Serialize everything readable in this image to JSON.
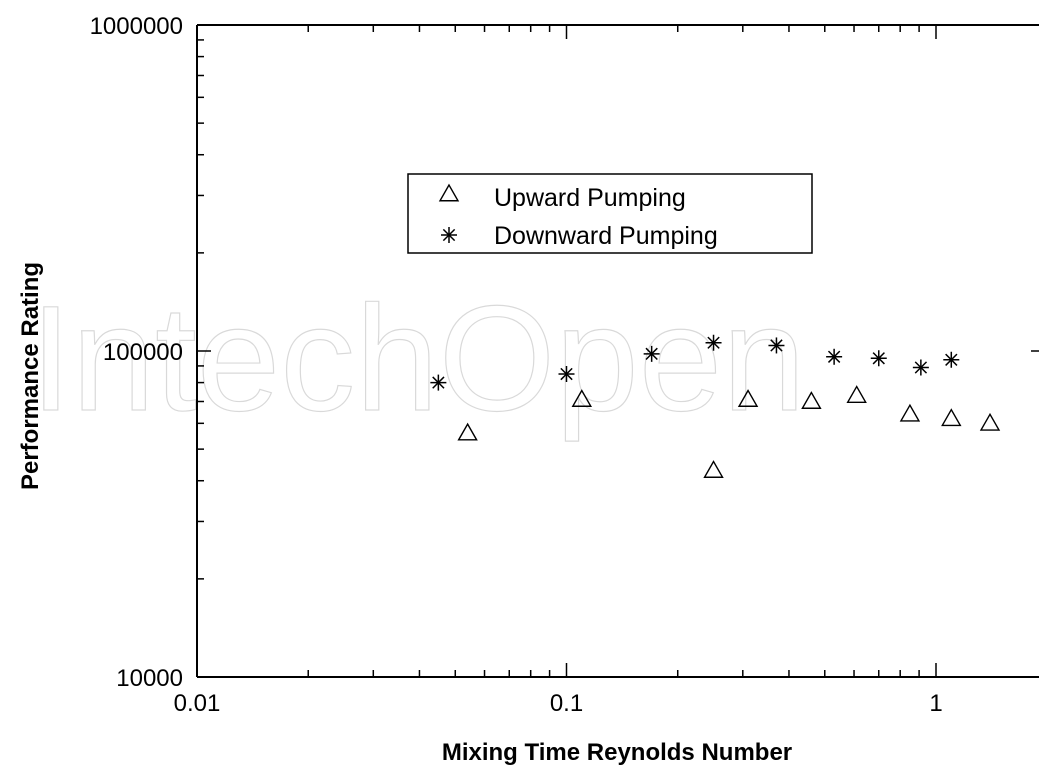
{
  "watermark": "IntechOpen",
  "chart_data": {
    "type": "scatter",
    "title": "",
    "xlabel": "Mixing Time Reynolds Number",
    "ylabel": "Performance Rating",
    "x_scale": "log",
    "y_scale": "log",
    "xlim": [
      0.01,
      2
    ],
    "ylim": [
      10000,
      1000000
    ],
    "x_tick_labels": [
      "0.01",
      "0.1",
      "1"
    ],
    "y_tick_labels": [
      "10000",
      "100000",
      "1000000"
    ],
    "grid": false,
    "legend_position": "upper-center",
    "series": [
      {
        "name": "Upward Pumping",
        "marker": "triangle-open",
        "color": "#000000",
        "points": [
          {
            "x": 0.054,
            "y": 56000
          },
          {
            "x": 0.11,
            "y": 71000
          },
          {
            "x": 0.25,
            "y": 43000
          },
          {
            "x": 0.31,
            "y": 71000
          },
          {
            "x": 0.46,
            "y": 70000
          },
          {
            "x": 0.61,
            "y": 73000
          },
          {
            "x": 0.85,
            "y": 64000
          },
          {
            "x": 1.1,
            "y": 62000
          },
          {
            "x": 1.4,
            "y": 60000
          }
        ]
      },
      {
        "name": "Downward Pumping",
        "marker": "asterisk",
        "color": "#000000",
        "points": [
          {
            "x": 0.045,
            "y": 80000
          },
          {
            "x": 0.1,
            "y": 85000
          },
          {
            "x": 0.17,
            "y": 98000
          },
          {
            "x": 0.25,
            "y": 106000
          },
          {
            "x": 0.37,
            "y": 104000
          },
          {
            "x": 0.53,
            "y": 96000
          },
          {
            "x": 0.7,
            "y": 95000
          },
          {
            "x": 0.91,
            "y": 89000
          },
          {
            "x": 1.1,
            "y": 94000
          }
        ]
      }
    ]
  }
}
